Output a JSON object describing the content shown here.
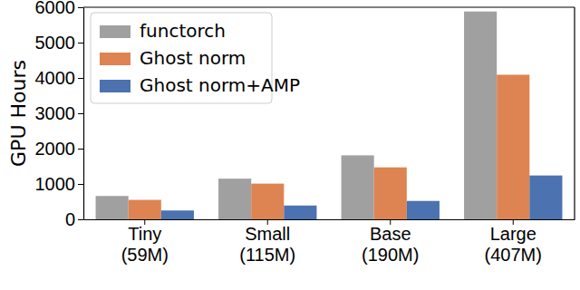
{
  "chart_data": {
    "type": "bar",
    "y_label": "GPU Hours",
    "categories": [
      "Tiny (59M)",
      "Small (115M)",
      "Base (190M)",
      "Large (407M)"
    ],
    "series": [
      {
        "name": "functorch",
        "color": "#a0a0a0",
        "values": [
          660,
          1150,
          1810,
          5880
        ]
      },
      {
        "name": "Ghost norm",
        "color": "#dd8452",
        "values": [
          550,
          1010,
          1470,
          4090
        ]
      },
      {
        "name": "Ghost norm+AMP",
        "color": "#4c72b0",
        "values": [
          250,
          390,
          520,
          1240
        ]
      }
    ],
    "ylim": [
      0,
      6000
    ],
    "yticks": [
      0,
      1000,
      2000,
      3000,
      4000,
      5000,
      6000
    ],
    "legend": "upper-left",
    "grid": false
  }
}
